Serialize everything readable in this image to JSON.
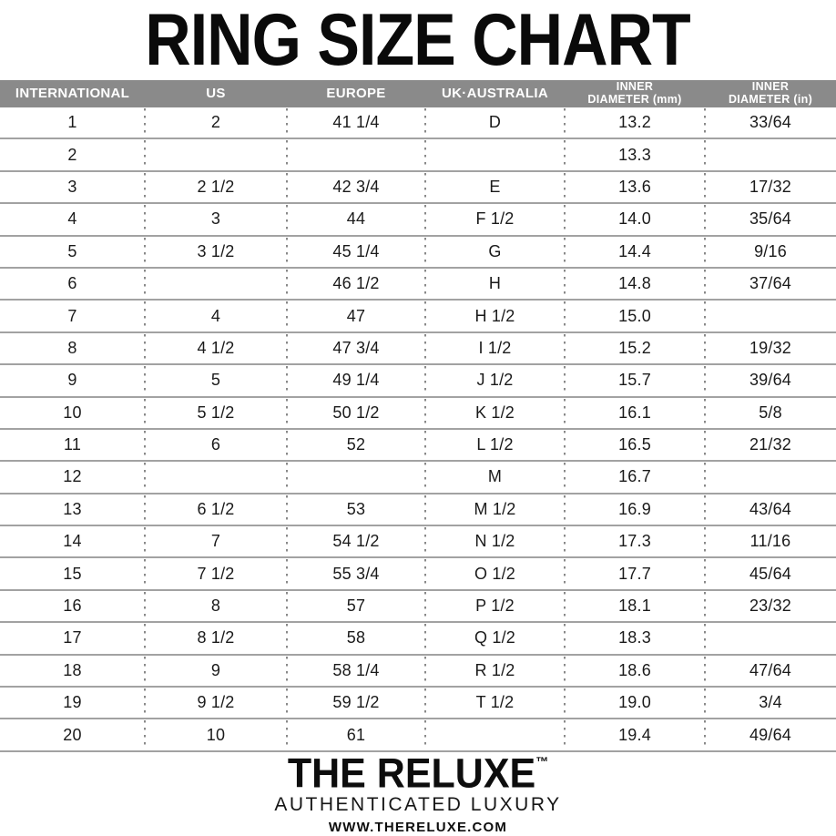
{
  "title": "RING SIZE CHART",
  "colors": {
    "header_bg": "#8a8a8a",
    "header_text": "#ffffff",
    "row_line": "#a2a2a2",
    "dot_separator": "#898989",
    "body_text": "#1a1a1a",
    "title_text": "#0a0a0a"
  },
  "table": {
    "headers": [
      {
        "id": "international",
        "line1": "INTERNATIONAL",
        "line2": ""
      },
      {
        "id": "us",
        "line1": "US",
        "line2": ""
      },
      {
        "id": "europe",
        "line1": "EUROPE",
        "line2": ""
      },
      {
        "id": "uk-australia",
        "line1": "UK·AUSTRALIA",
        "line2": ""
      },
      {
        "id": "inner-diameter-mm",
        "line1": "INNER",
        "line2": "DIAMETER (mm)"
      },
      {
        "id": "inner-diameter-in",
        "line1": "INNER",
        "line2": "DIAMETER (in)"
      }
    ],
    "rows": [
      [
        "1",
        "2",
        "41 1/4",
        "D",
        "13.2",
        "33/64"
      ],
      [
        "2",
        "",
        "",
        "",
        "13.3",
        ""
      ],
      [
        "3",
        "2 1/2",
        "42 3/4",
        "E",
        "13.6",
        "17/32"
      ],
      [
        "4",
        "3",
        "44",
        "F 1/2",
        "14.0",
        "35/64"
      ],
      [
        "5",
        "3 1/2",
        "45 1/4",
        "G",
        "14.4",
        "9/16"
      ],
      [
        "6",
        "",
        "46 1/2",
        "H",
        "14.8",
        "37/64"
      ],
      [
        "7",
        "4",
        "47",
        "H 1/2",
        "15.0",
        ""
      ],
      [
        "8",
        "4 1/2",
        "47 3/4",
        "I 1/2",
        "15.2",
        "19/32"
      ],
      [
        "9",
        "5",
        "49 1/4",
        "J 1/2",
        "15.7",
        "39/64"
      ],
      [
        "10",
        "5 1/2",
        "50 1/2",
        "K 1/2",
        "16.1",
        "5/8"
      ],
      [
        "11",
        "6",
        "52",
        "L 1/2",
        "16.5",
        "21/32"
      ],
      [
        "12",
        "",
        "",
        "M",
        "16.7",
        ""
      ],
      [
        "13",
        "6 1/2",
        "53",
        "M 1/2",
        "16.9",
        "43/64"
      ],
      [
        "14",
        "7",
        "54 1/2",
        "N 1/2",
        "17.3",
        "11/16"
      ],
      [
        "15",
        "7 1/2",
        "55 3/4",
        "O 1/2",
        "17.7",
        "45/64"
      ],
      [
        "16",
        "8",
        "57",
        "P 1/2",
        "18.1",
        "23/32"
      ],
      [
        "17",
        "8 1/2",
        "58",
        "Q 1/2",
        "18.3",
        ""
      ],
      [
        "18",
        "9",
        "58 1/4",
        "R 1/2",
        "18.6",
        "47/64"
      ],
      [
        "19",
        "9 1/2",
        "59 1/2",
        "T 1/2",
        "19.0",
        "3/4"
      ],
      [
        "20",
        "10",
        "61",
        "",
        "19.4",
        "49/64"
      ]
    ]
  },
  "footer": {
    "brand": "THE RELUXE",
    "trademark": "™",
    "tagline": "AUTHENTICATED LUXURY",
    "website": "WWW.THERELUXE.COM"
  }
}
